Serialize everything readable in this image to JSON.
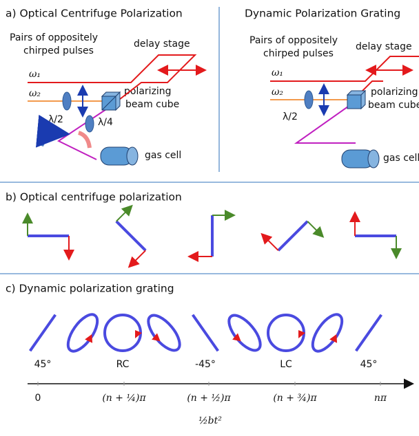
{
  "panel_a": {
    "left": {
      "title": "a)  Optical Centrifuge Polarization",
      "pulses_label": [
        "Pairs of oppositely",
        "chirped pulses"
      ],
      "delay_stage": "delay stage",
      "omega1": "ω₁",
      "omega2": "ω₂",
      "half_wave": "λ/2",
      "quarter_wave": "λ/4",
      "cube_label": [
        "polarizing",
        "beam cube"
      ],
      "gas_cell": "gas cell"
    },
    "right": {
      "title": "Dynamic Polarization Grating",
      "pulses_label": [
        "Pairs of oppositely",
        "chirped pulses"
      ],
      "delay_stage": "delay stage",
      "omega1": "ω₁",
      "omega2": "ω₂",
      "half_wave": "λ/2",
      "cube_label": [
        "polarizing",
        "beam cube"
      ],
      "gas_cell": "gas cell"
    }
  },
  "panel_b": {
    "title": "b) Optical centrifuge polarization"
  },
  "panel_c": {
    "title": "c) Dynamic polarization grating",
    "states": [
      "45°",
      "RC",
      "-45°",
      "LC",
      "45°"
    ],
    "axis_ticks": [
      "0",
      "(n + ¼)π",
      "(n + ½)π",
      "(n + ¾)π",
      "nπ"
    ],
    "axis_label": "½bt²"
  }
}
